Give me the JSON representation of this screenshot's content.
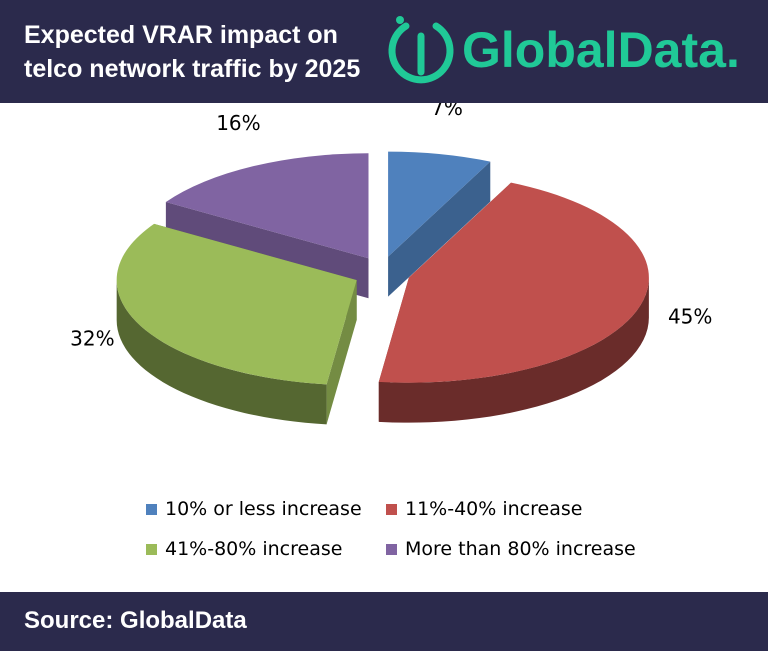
{
  "header": {
    "title_line1": "Expected VRAR impact on",
    "title_line2": "telco network traffic by 2025",
    "logo_text": "GlobalData."
  },
  "footer": {
    "source": "Source: GlobalData"
  },
  "colors": {
    "header_bg": "#2b2a4c",
    "logo_accent": "#20c997"
  },
  "chart_data": {
    "type": "pie",
    "style": "3d-exploded",
    "title": "",
    "legend_position": "bottom",
    "slices": [
      {
        "label": "10% or less increase",
        "value": 7,
        "display": "7%",
        "color": "#4f81bd"
      },
      {
        "label": "11%-40% increase",
        "value": 45,
        "display": "45%",
        "color": "#c0504d"
      },
      {
        "label": "41%-80% increase",
        "value": 32,
        "display": "32%",
        "color": "#9bbb59"
      },
      {
        "label": "More than 80% increase",
        "value": 16,
        "display": "16%",
        "color": "#8064a2"
      }
    ]
  }
}
